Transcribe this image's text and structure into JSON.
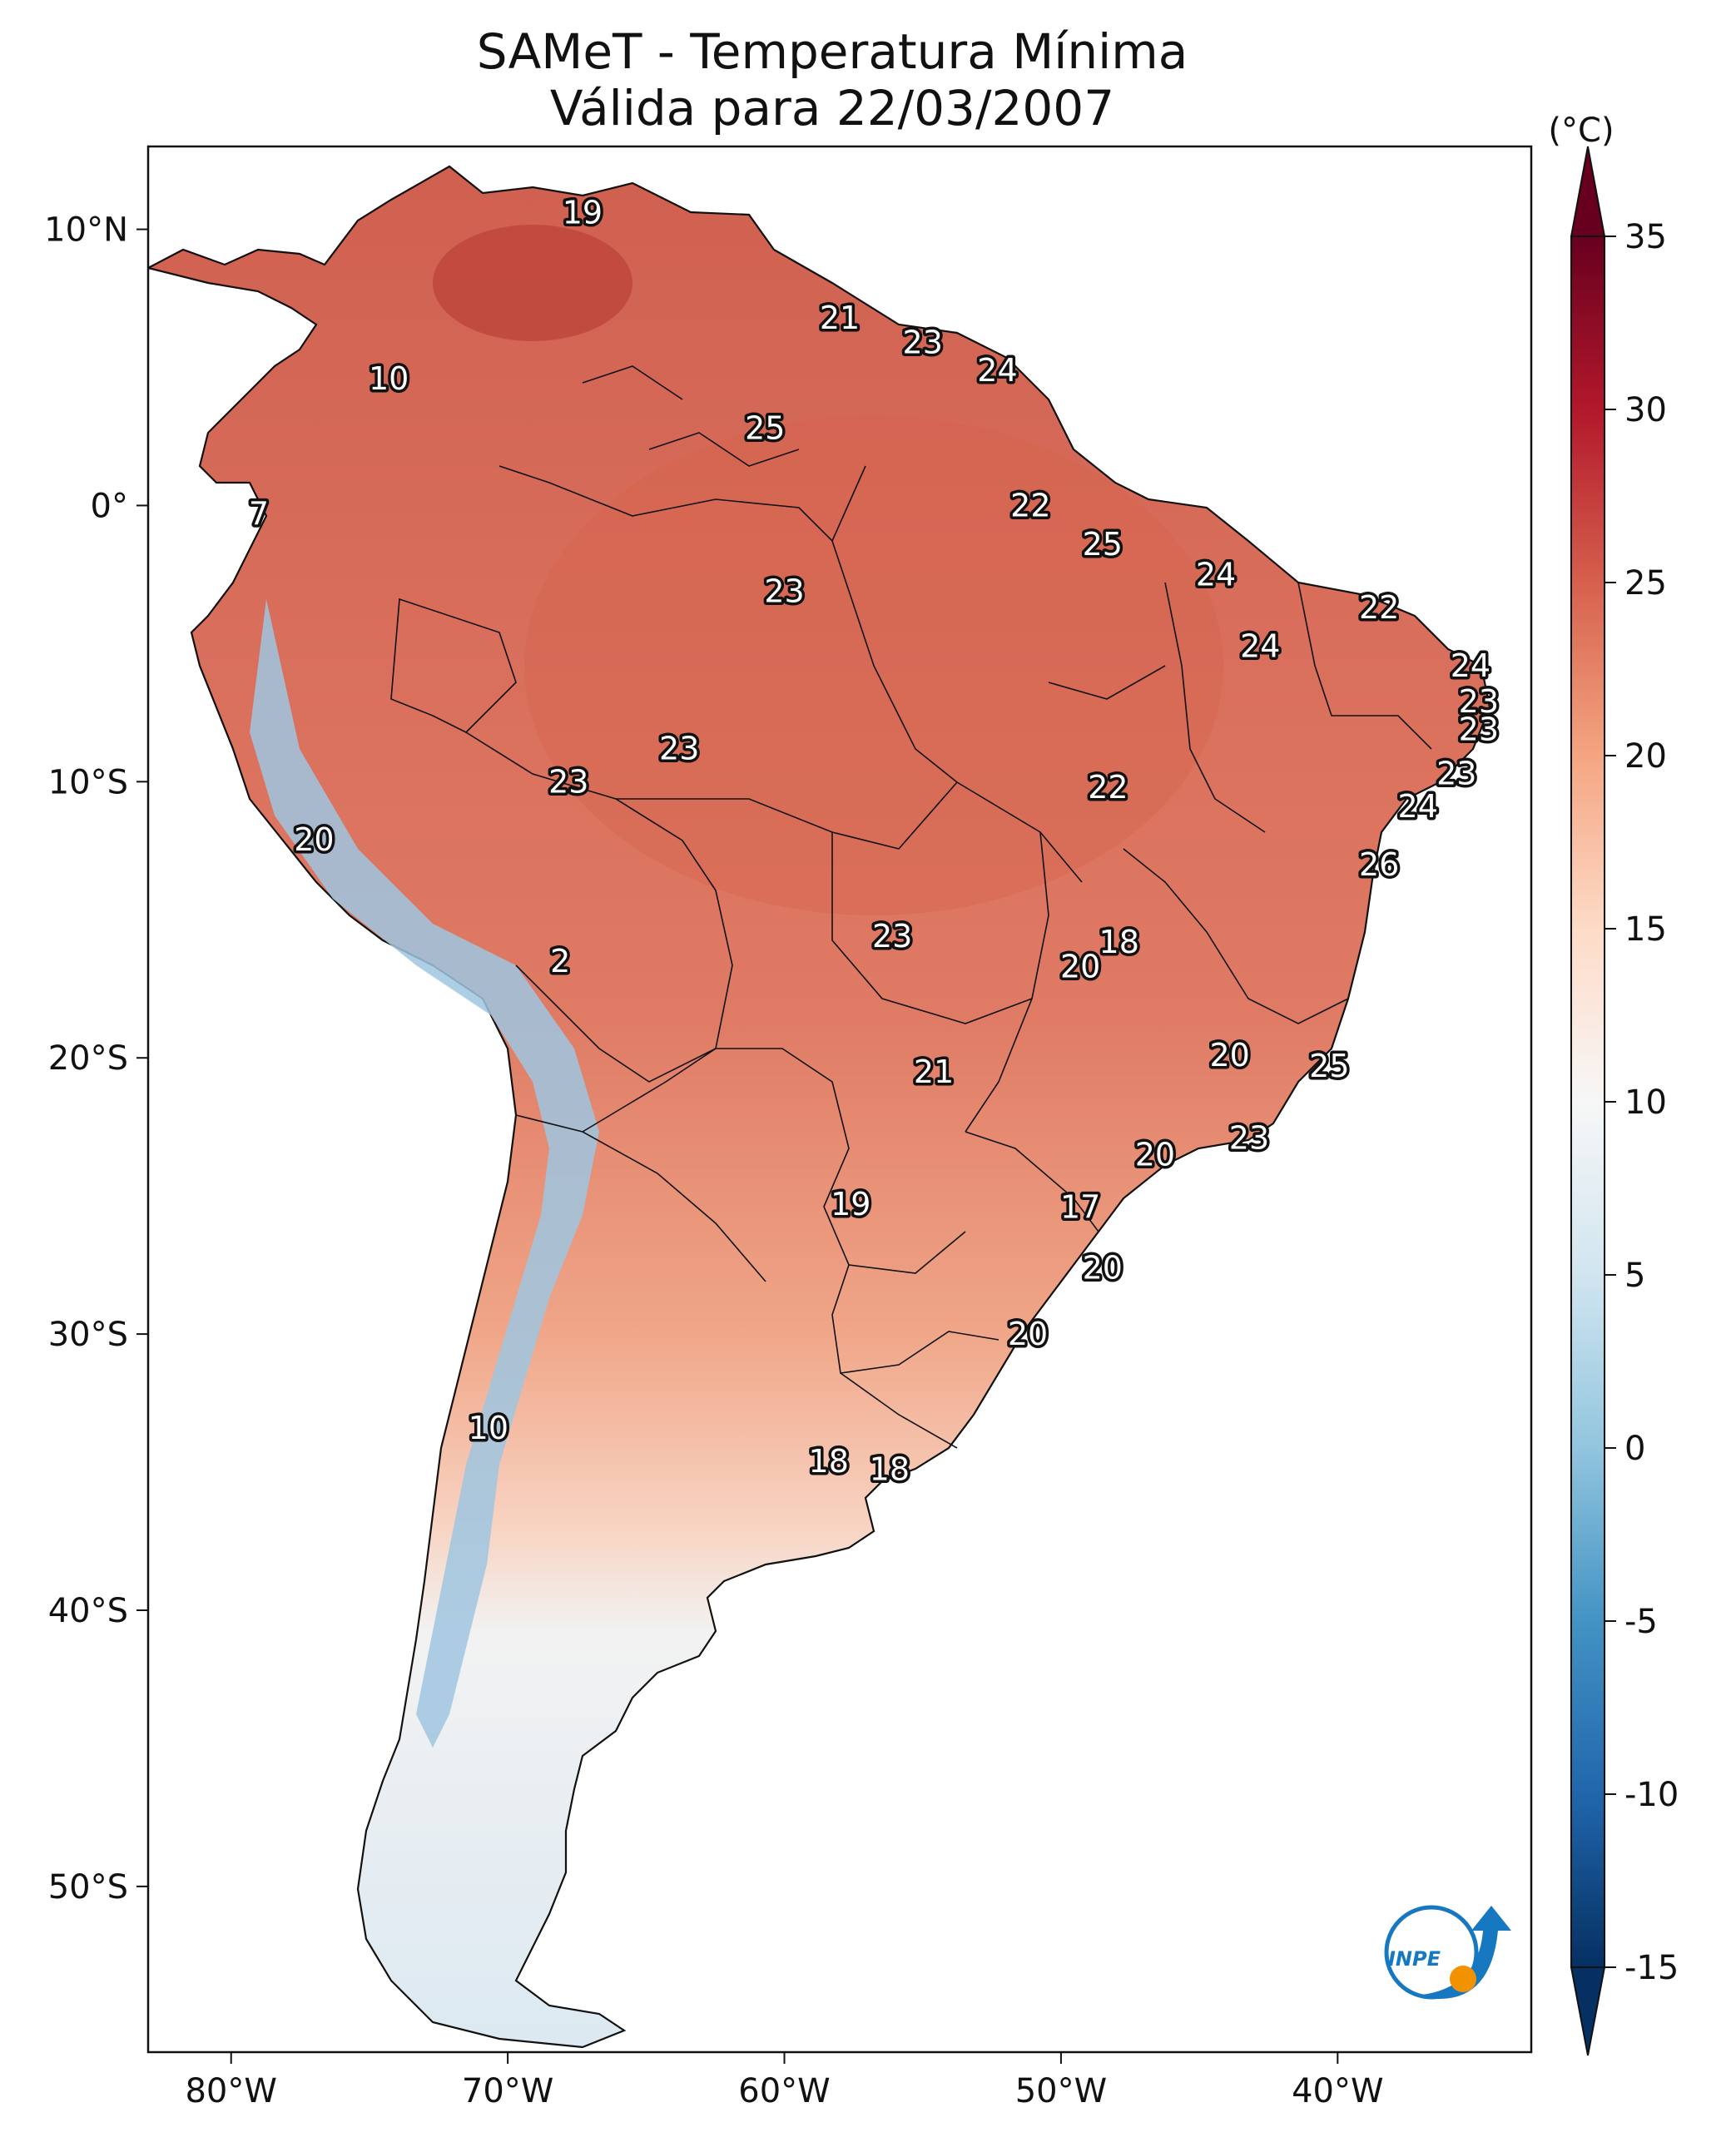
{
  "title": {
    "line1": "SAMeT - Temperatura Mínima",
    "line2": "Válida para 22/03/2007"
  },
  "colorbar": {
    "unit": "(°C)",
    "ticks": [
      "35",
      "30",
      "25",
      "20",
      "15",
      "10",
      "5",
      "0",
      "-5",
      "-10",
      "-15"
    ],
    "tick_values": [
      35,
      30,
      25,
      20,
      15,
      10,
      5,
      0,
      -5,
      -10,
      -15
    ],
    "range": [
      -15,
      35
    ],
    "extend": "both",
    "colormap": [
      "#053061",
      "#2166ac",
      "#4393c3",
      "#92c5de",
      "#d1e5f0",
      "#f7f7f7",
      "#fddbc7",
      "#f4a582",
      "#d6604d",
      "#b2182b",
      "#67001f"
    ]
  },
  "axes": {
    "x_ticks": [
      {
        "label": "80°W",
        "lon": -80
      },
      {
        "label": "70°W",
        "lon": -70
      },
      {
        "label": "60°W",
        "lon": -60
      },
      {
        "label": "50°W",
        "lon": -50
      },
      {
        "label": "40°W",
        "lon": -40
      }
    ],
    "y_ticks": [
      {
        "label": "10°N",
        "lat": 10
      },
      {
        "label": "0°",
        "lat": 0
      },
      {
        "label": "10°S",
        "lat": -10
      },
      {
        "label": "20°S",
        "lat": -20
      },
      {
        "label": "30°S",
        "lat": -30
      },
      {
        "label": "40°S",
        "lat": -40
      },
      {
        "label": "50°S",
        "lat": -50
      }
    ],
    "lon_range": [
      -83,
      -33
    ],
    "lat_range": [
      -56,
      13
    ]
  },
  "station_values": [
    {
      "value": "19",
      "lon": -67.3,
      "lat": 10.6
    },
    {
      "value": "21",
      "lon": -58.0,
      "lat": 6.8
    },
    {
      "value": "23",
      "lon": -55.0,
      "lat": 5.9
    },
    {
      "value": "24",
      "lon": -52.3,
      "lat": 4.9
    },
    {
      "value": "10",
      "lon": -74.3,
      "lat": 4.6
    },
    {
      "value": "25",
      "lon": -60.7,
      "lat": 2.8
    },
    {
      "value": "7",
      "lon": -79.0,
      "lat": -0.3
    },
    {
      "value": "22",
      "lon": -51.1,
      "lat": 0.0
    },
    {
      "value": "25",
      "lon": -48.5,
      "lat": -1.4
    },
    {
      "value": "24",
      "lon": -44.4,
      "lat": -2.5
    },
    {
      "value": "23",
      "lon": -60.0,
      "lat": -3.1
    },
    {
      "value": "22",
      "lon": -38.5,
      "lat": -3.7
    },
    {
      "value": "24",
      "lon": -42.8,
      "lat": -5.1
    },
    {
      "value": "24",
      "lon": -35.2,
      "lat": -5.8
    },
    {
      "value": "23",
      "lon": -34.9,
      "lat": -7.1
    },
    {
      "value": "23",
      "lon": -34.9,
      "lat": -8.1
    },
    {
      "value": "23",
      "lon": -63.8,
      "lat": -8.8
    },
    {
      "value": "23",
      "lon": -35.7,
      "lat": -9.7
    },
    {
      "value": "22",
      "lon": -48.3,
      "lat": -10.2
    },
    {
      "value": "23",
      "lon": -67.8,
      "lat": -10.0
    },
    {
      "value": "24",
      "lon": -37.1,
      "lat": -10.9
    },
    {
      "value": "20",
      "lon": -77.0,
      "lat": -12.1
    },
    {
      "value": "26",
      "lon": -38.5,
      "lat": -13.0
    },
    {
      "value": "23",
      "lon": -56.1,
      "lat": -15.6
    },
    {
      "value": "18",
      "lon": -47.9,
      "lat": -15.8
    },
    {
      "value": "2",
      "lon": -68.1,
      "lat": -16.5
    },
    {
      "value": "20",
      "lon": -49.3,
      "lat": -16.7
    },
    {
      "value": "20",
      "lon": -43.9,
      "lat": -19.9
    },
    {
      "value": "25",
      "lon": -40.3,
      "lat": -20.3
    },
    {
      "value": "21",
      "lon": -54.6,
      "lat": -20.5
    },
    {
      "value": "23",
      "lon": -43.2,
      "lat": -22.9
    },
    {
      "value": "20",
      "lon": -46.6,
      "lat": -23.5
    },
    {
      "value": "19",
      "lon": -57.6,
      "lat": -25.3
    },
    {
      "value": "17",
      "lon": -49.3,
      "lat": -25.4
    },
    {
      "value": "20",
      "lon": -48.5,
      "lat": -27.6
    },
    {
      "value": "20",
      "lon": -51.2,
      "lat": -30.0
    },
    {
      "value": "10",
      "lon": -70.7,
      "lat": -33.4
    },
    {
      "value": "18",
      "lon": -58.4,
      "lat": -34.6
    },
    {
      "value": "18",
      "lon": -56.2,
      "lat": -34.9
    }
  ],
  "logo": {
    "text": "INPE",
    "colors": {
      "blue": "#1778c2",
      "orange": "#f39200"
    }
  }
}
